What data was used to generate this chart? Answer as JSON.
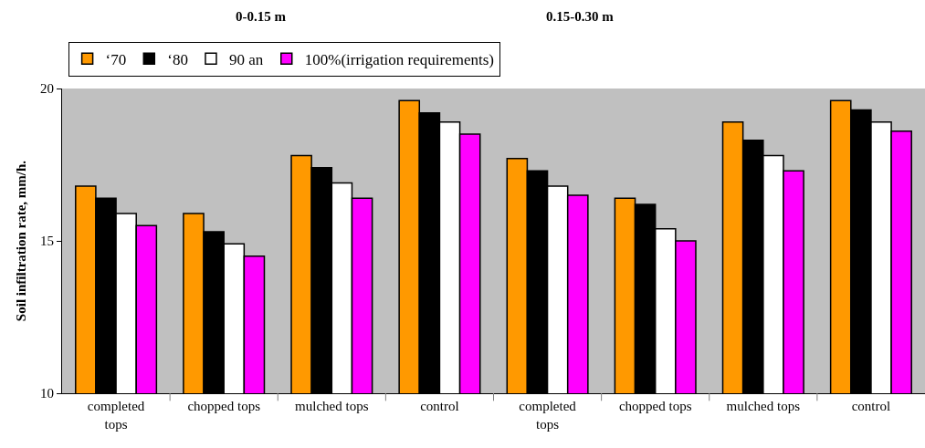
{
  "chart_data": {
    "type": "bar",
    "ylabel": "Soil infiltration rate, mm/h.",
    "categories": [
      "completed tops",
      "chopped tops",
      "mulched tops",
      "control",
      "completed tops",
      "chopped tops",
      "mulched tops",
      "control"
    ],
    "series": [
      {
        "name": "‘70",
        "color": "#ff9900",
        "values": [
          16.8,
          15.9,
          17.8,
          19.6,
          17.7,
          16.4,
          18.9,
          19.6
        ]
      },
      {
        "name": "‘80",
        "color": "#000000",
        "values": [
          16.4,
          15.3,
          17.4,
          19.2,
          17.3,
          16.2,
          18.3,
          19.3
        ]
      },
      {
        "name": "90 an",
        "color": "#ffffff",
        "values": [
          15.9,
          14.9,
          16.9,
          18.9,
          16.8,
          15.4,
          17.8,
          18.9
        ]
      },
      {
        "name": "100%(irrigation requirements)",
        "color": "#ff00ff",
        "values": [
          15.5,
          14.5,
          16.4,
          18.5,
          16.5,
          15.0,
          17.3,
          18.6
        ]
      }
    ],
    "annotations": [
      "0-0.15 m",
      "0.15-0.30 m"
    ],
    "ylim": [
      10,
      20
    ],
    "yticks": [
      10,
      15,
      20
    ],
    "grid": false,
    "legend": "top"
  }
}
